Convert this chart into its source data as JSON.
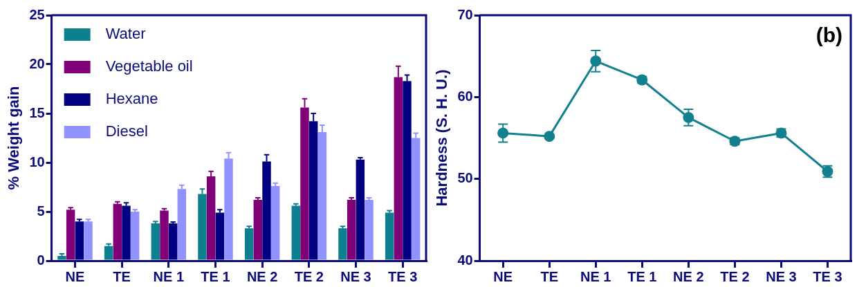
{
  "chart_data": [
    {
      "type": "bar",
      "ylabel": "% Weight gain",
      "categories": [
        "NE",
        "TE",
        "NE 1",
        "TE 1",
        "NE 2",
        "TE 2",
        "NE 3",
        "TE 3"
      ],
      "series": [
        {
          "name": "Water",
          "color": "#0e7f8f",
          "values": [
            0.5,
            1.5,
            3.8,
            6.8,
            3.3,
            5.6,
            3.3,
            4.9
          ],
          "errors": [
            0.2,
            0.2,
            0.2,
            0.5,
            0.2,
            0.2,
            0.2,
            0.2
          ]
        },
        {
          "name": "Vegetable oil",
          "color": "#7f0077",
          "values": [
            5.2,
            5.8,
            5.1,
            8.6,
            6.2,
            15.6,
            6.2,
            18.7
          ],
          "errors": [
            0.2,
            0.2,
            0.2,
            0.5,
            0.2,
            0.9,
            0.2,
            1.1
          ]
        },
        {
          "name": "Hexane",
          "color": "#000080",
          "values": [
            4.0,
            5.6,
            3.8,
            4.9,
            10.1,
            14.2,
            10.3,
            18.3
          ],
          "errors": [
            0.2,
            0.3,
            0.15,
            0.3,
            0.7,
            0.8,
            0.2,
            0.6
          ]
        },
        {
          "name": "Diesel",
          "color": "#9191ff",
          "values": [
            4.0,
            5.0,
            7.3,
            10.4,
            7.6,
            13.1,
            6.2,
            12.5
          ],
          "errors": [
            0.2,
            0.2,
            0.4,
            0.6,
            0.3,
            0.7,
            0.2,
            0.5
          ]
        }
      ],
      "ylim": [
        0,
        25
      ],
      "yticks": [
        0,
        5,
        10,
        15,
        20,
        25
      ],
      "grid": false,
      "legend": "top left"
    },
    {
      "type": "line",
      "ylabel": "Hardness (S. H. U.)",
      "categories": [
        "NE",
        "TE",
        "NE 1",
        "TE 1",
        "NE 2",
        "TE 2",
        "NE 3",
        "TE 3"
      ],
      "series": [
        {
          "color": "#12808f",
          "values": [
            55.6,
            55.2,
            64.4,
            62.1,
            57.5,
            54.6,
            55.6,
            50.9
          ],
          "errors": [
            1.1,
            0.2,
            1.3,
            0.4,
            1.0,
            0.4,
            0.5,
            0.7
          ]
        }
      ],
      "ylim": [
        40,
        70
      ],
      "yticks": [
        40,
        50,
        60,
        70
      ],
      "grid": false,
      "marker": "circle",
      "annotations": [
        "(b)"
      ]
    }
  ]
}
